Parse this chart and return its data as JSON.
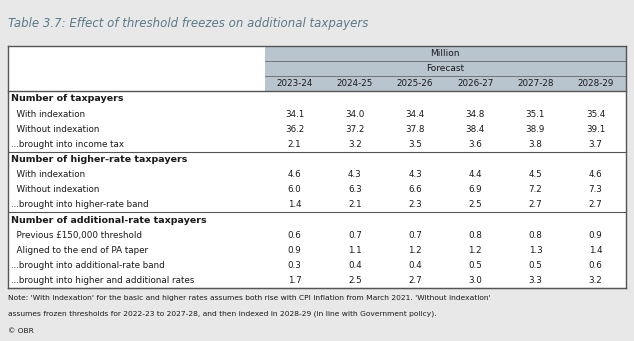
{
  "title": "Table 3.7: Effect of threshold freezes on additional taxpayers",
  "years": [
    "2023-24",
    "2024-25",
    "2025-26",
    "2026-27",
    "2027-28",
    "2028-29"
  ],
  "sections": [
    {
      "section_title": "Number of taxpayers",
      "rows": [
        {
          "label": "  With indexation",
          "values": [
            34.1,
            34.0,
            34.4,
            34.8,
            35.1,
            35.4
          ],
          "bold": false
        },
        {
          "label": "  Without indexation",
          "values": [
            36.2,
            37.2,
            37.8,
            38.4,
            38.9,
            39.1
          ],
          "bold": false
        },
        {
          "label": "...brought into income tax",
          "values": [
            2.1,
            3.2,
            3.5,
            3.6,
            3.8,
            3.7
          ],
          "bold": false,
          "section_end": true
        }
      ]
    },
    {
      "section_title": "Number of higher-rate taxpayers",
      "rows": [
        {
          "label": "  With indexation",
          "values": [
            4.6,
            4.3,
            4.3,
            4.4,
            4.5,
            4.6
          ],
          "bold": false
        },
        {
          "label": "  Without indexation",
          "values": [
            6.0,
            6.3,
            6.6,
            6.9,
            7.2,
            7.3
          ],
          "bold": false
        },
        {
          "label": "...brought into higher-rate band",
          "values": [
            1.4,
            2.1,
            2.3,
            2.5,
            2.7,
            2.7
          ],
          "bold": false,
          "section_end": true
        }
      ]
    },
    {
      "section_title": "Number of additional-rate taxpayers",
      "rows": [
        {
          "label": "  Previous £150,000 threshold",
          "values": [
            0.6,
            0.7,
            0.7,
            0.8,
            0.8,
            0.9
          ],
          "bold": false
        },
        {
          "label": "  Aligned to the end of PA taper",
          "values": [
            0.9,
            1.1,
            1.2,
            1.2,
            1.3,
            1.4
          ],
          "bold": false
        },
        {
          "label": "...brought into additional-rate band",
          "values": [
            0.3,
            0.4,
            0.4,
            0.5,
            0.5,
            0.6
          ],
          "bold": false,
          "section_end": false
        },
        {
          "label": "...brought into higher and additional rates",
          "values": [
            1.7,
            2.5,
            2.7,
            3.0,
            3.3,
            3.2
          ],
          "bold": false,
          "section_end": true
        }
      ]
    }
  ],
  "note1": "Note: 'With indexation' for the basic and higher rates assumes both rise with CPI inflation from March 2021. 'Without indexation'",
  "note2": "assumes frozen thresholds for 2022-23 to 2027-28, and then indexed in 2028-29 (in line with Government policy).",
  "footer": "© OBR",
  "header_bg": "#b8c4ce",
  "bg_color": "#e8e8e8",
  "table_bg": "#ffffff",
  "border_color": "#555555",
  "title_color": "#5a7a8a",
  "text_color": "#1a1a1a"
}
